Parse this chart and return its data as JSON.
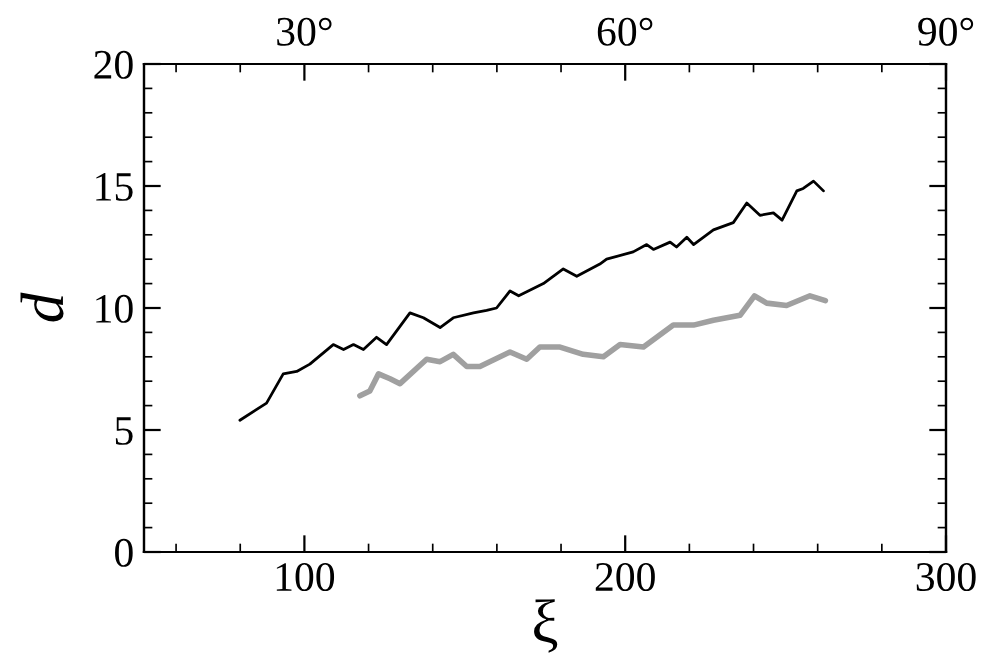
{
  "chart_data": {
    "type": "line",
    "xlabel": "ξ",
    "ylabel": "d",
    "xlim": [
      50,
      300
    ],
    "xticks": [
      100,
      200,
      300
    ],
    "ylim": [
      0,
      20
    ],
    "yticks": [
      0,
      5,
      10,
      15,
      20
    ],
    "x2lim": [
      15,
      90
    ],
    "x2ticks": [
      {
        "value": 30,
        "label": "30°"
      },
      {
        "value": 60,
        "label": "60°"
      },
      {
        "value": 90,
        "label": "90°"
      }
    ],
    "series": [
      {
        "color": "#000000",
        "x": [
          79.9,
          88.2,
          93.4,
          97.6,
          101.7,
          109,
          112.2,
          115.3,
          118.4,
          122.5,
          125.6,
          132.9,
          137.1,
          142.3,
          146.4,
          152.7,
          156.8,
          159.9,
          164.1,
          166.8,
          174.5,
          180.7,
          184.9,
          192.1,
          194.2,
          202.5,
          206.7,
          208.8,
          214,
          216,
          219.2,
          221.3,
          227.5,
          233.7,
          237.9,
          242,
          246.2,
          248.9,
          253.5,
          255.5,
          258.7,
          261.8
        ],
        "values": [
          5.4,
          6.1,
          7.3,
          7.4,
          7.7,
          8.5,
          8.3,
          8.5,
          8.3,
          8.8,
          8.5,
          9.8,
          9.6,
          9.2,
          9.6,
          9.8,
          9.9,
          10.0,
          10.7,
          10.5,
          11.0,
          11.6,
          11.3,
          11.8,
          12.0,
          12.3,
          12.6,
          12.4,
          12.7,
          12.5,
          12.9,
          12.6,
          13.2,
          13.5,
          14.3,
          13.8,
          13.9,
          13.6,
          14.8,
          14.9,
          15.2,
          14.8
        ]
      },
      {
        "color": "#a0a0a0",
        "x": [
          117.3,
          120.4,
          123.1,
          126.7,
          129.8,
          138.1,
          142.3,
          146.4,
          150.6,
          154.7,
          164.1,
          169.3,
          173.4,
          179.7,
          186.9,
          193.2,
          198.4,
          205.7,
          215,
          221.3,
          227.5,
          235.8,
          240.3,
          244.1,
          250.3,
          257.6,
          262.4
        ],
        "values": [
          6.4,
          6.6,
          7.3,
          7.1,
          6.9,
          7.9,
          7.8,
          8.1,
          7.6,
          7.6,
          8.2,
          7.9,
          8.4,
          8.4,
          8.1,
          8.0,
          8.5,
          8.4,
          9.3,
          9.3,
          9.5,
          9.7,
          10.5,
          10.2,
          10.1,
          10.5,
          10.3
        ]
      }
    ]
  }
}
